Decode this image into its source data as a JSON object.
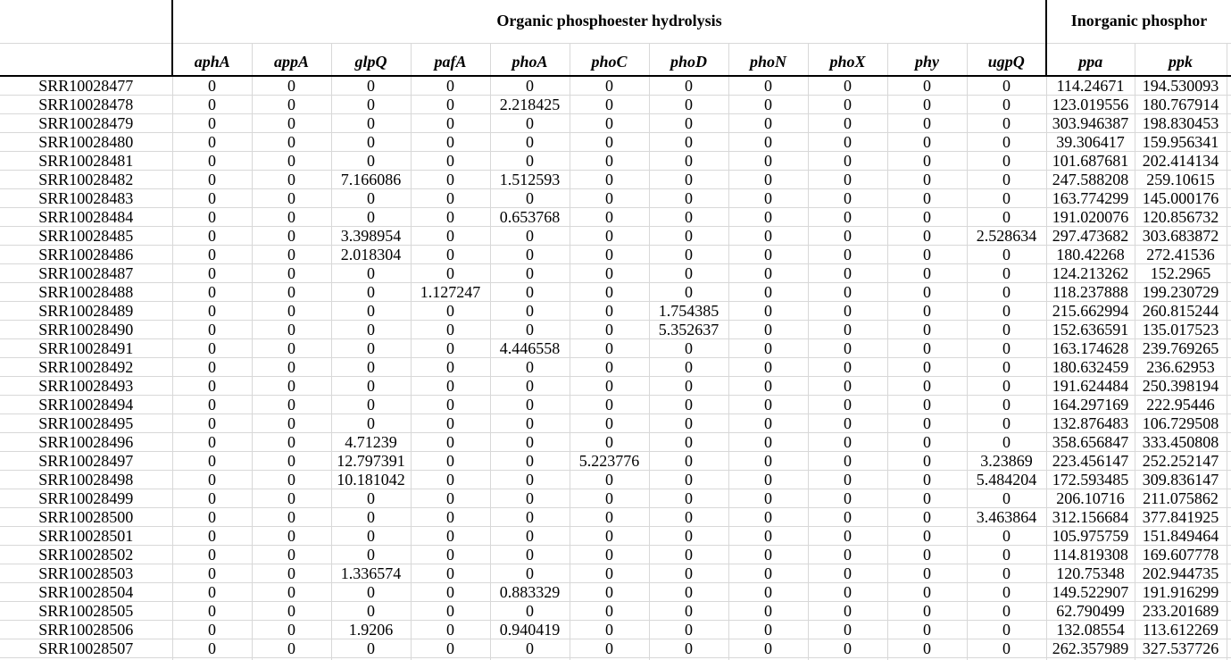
{
  "sheet": {
    "group_headers": {
      "organic": "Organic phosphoester hydrolysis",
      "inorganic_visible": "Inorganic phosphor"
    },
    "column_groups": [
      {
        "label": "Organic phosphoester hydrolysis",
        "columns": [
          "aphA",
          "appA",
          "glpQ",
          "pafA",
          "phoA",
          "phoC",
          "phoD",
          "phoN",
          "phoX",
          "phy",
          "ugpQ"
        ]
      },
      {
        "label": "Inorganic phosphor",
        "label_truncated_at_right_edge": true,
        "columns": [
          "ppa",
          "ppk"
        ]
      }
    ],
    "rows": [
      {
        "id": "SRR10028477",
        "values": [
          "0",
          "0",
          "0",
          "0",
          "0",
          "0",
          "0",
          "0",
          "0",
          "0",
          "0",
          "114.24671",
          "194.530093"
        ]
      },
      {
        "id": "SRR10028478",
        "values": [
          "0",
          "0",
          "0",
          "0",
          "2.218425",
          "0",
          "0",
          "0",
          "0",
          "0",
          "0",
          "123.019556",
          "180.767914"
        ]
      },
      {
        "id": "SRR10028479",
        "values": [
          "0",
          "0",
          "0",
          "0",
          "0",
          "0",
          "0",
          "0",
          "0",
          "0",
          "0",
          "303.946387",
          "198.830453"
        ]
      },
      {
        "id": "SRR10028480",
        "values": [
          "0",
          "0",
          "0",
          "0",
          "0",
          "0",
          "0",
          "0",
          "0",
          "0",
          "0",
          "39.306417",
          "159.956341"
        ]
      },
      {
        "id": "SRR10028481",
        "values": [
          "0",
          "0",
          "0",
          "0",
          "0",
          "0",
          "0",
          "0",
          "0",
          "0",
          "0",
          "101.687681",
          "202.414134"
        ]
      },
      {
        "id": "SRR10028482",
        "values": [
          "0",
          "0",
          "7.166086",
          "0",
          "1.512593",
          "0",
          "0",
          "0",
          "0",
          "0",
          "0",
          "247.588208",
          "259.10615"
        ]
      },
      {
        "id": "SRR10028483",
        "values": [
          "0",
          "0",
          "0",
          "0",
          "0",
          "0",
          "0",
          "0",
          "0",
          "0",
          "0",
          "163.774299",
          "145.000176"
        ]
      },
      {
        "id": "SRR10028484",
        "values": [
          "0",
          "0",
          "0",
          "0",
          "0.653768",
          "0",
          "0",
          "0",
          "0",
          "0",
          "0",
          "191.020076",
          "120.856732"
        ]
      },
      {
        "id": "SRR10028485",
        "values": [
          "0",
          "0",
          "3.398954",
          "0",
          "0",
          "0",
          "0",
          "0",
          "0",
          "0",
          "2.528634",
          "297.473682",
          "303.683872"
        ]
      },
      {
        "id": "SRR10028486",
        "values": [
          "0",
          "0",
          "2.018304",
          "0",
          "0",
          "0",
          "0",
          "0",
          "0",
          "0",
          "0",
          "180.42268",
          "272.41536"
        ]
      },
      {
        "id": "SRR10028487",
        "values": [
          "0",
          "0",
          "0",
          "0",
          "0",
          "0",
          "0",
          "0",
          "0",
          "0",
          "0",
          "124.213262",
          "152.2965"
        ]
      },
      {
        "id": "SRR10028488",
        "values": [
          "0",
          "0",
          "0",
          "1.127247",
          "0",
          "0",
          "0",
          "0",
          "0",
          "0",
          "0",
          "118.237888",
          "199.230729"
        ]
      },
      {
        "id": "SRR10028489",
        "values": [
          "0",
          "0",
          "0",
          "0",
          "0",
          "0",
          "1.754385",
          "0",
          "0",
          "0",
          "0",
          "215.662994",
          "260.815244"
        ]
      },
      {
        "id": "SRR10028490",
        "values": [
          "0",
          "0",
          "0",
          "0",
          "0",
          "0",
          "5.352637",
          "0",
          "0",
          "0",
          "0",
          "152.636591",
          "135.017523"
        ]
      },
      {
        "id": "SRR10028491",
        "values": [
          "0",
          "0",
          "0",
          "0",
          "4.446558",
          "0",
          "0",
          "0",
          "0",
          "0",
          "0",
          "163.174628",
          "239.769265"
        ]
      },
      {
        "id": "SRR10028492",
        "values": [
          "0",
          "0",
          "0",
          "0",
          "0",
          "0",
          "0",
          "0",
          "0",
          "0",
          "0",
          "180.632459",
          "236.62953"
        ]
      },
      {
        "id": "SRR10028493",
        "values": [
          "0",
          "0",
          "0",
          "0",
          "0",
          "0",
          "0",
          "0",
          "0",
          "0",
          "0",
          "191.624484",
          "250.398194"
        ]
      },
      {
        "id": "SRR10028494",
        "values": [
          "0",
          "0",
          "0",
          "0",
          "0",
          "0",
          "0",
          "0",
          "0",
          "0",
          "0",
          "164.297169",
          "222.95446"
        ]
      },
      {
        "id": "SRR10028495",
        "values": [
          "0",
          "0",
          "0",
          "0",
          "0",
          "0",
          "0",
          "0",
          "0",
          "0",
          "0",
          "132.876483",
          "106.729508"
        ]
      },
      {
        "id": "SRR10028496",
        "values": [
          "0",
          "0",
          "4.71239",
          "0",
          "0",
          "0",
          "0",
          "0",
          "0",
          "0",
          "0",
          "358.656847",
          "333.450808"
        ]
      },
      {
        "id": "SRR10028497",
        "values": [
          "0",
          "0",
          "12.797391",
          "0",
          "0",
          "5.223776",
          "0",
          "0",
          "0",
          "0",
          "3.23869",
          "223.456147",
          "252.252147"
        ]
      },
      {
        "id": "SRR10028498",
        "values": [
          "0",
          "0",
          "10.181042",
          "0",
          "0",
          "0",
          "0",
          "0",
          "0",
          "0",
          "5.484204",
          "172.593485",
          "309.836147"
        ]
      },
      {
        "id": "SRR10028499",
        "values": [
          "0",
          "0",
          "0",
          "0",
          "0",
          "0",
          "0",
          "0",
          "0",
          "0",
          "0",
          "206.10716",
          "211.075862"
        ]
      },
      {
        "id": "SRR10028500",
        "values": [
          "0",
          "0",
          "0",
          "0",
          "0",
          "0",
          "0",
          "0",
          "0",
          "0",
          "3.463864",
          "312.156684",
          "377.841925"
        ]
      },
      {
        "id": "SRR10028501",
        "values": [
          "0",
          "0",
          "0",
          "0",
          "0",
          "0",
          "0",
          "0",
          "0",
          "0",
          "0",
          "105.975759",
          "151.849464"
        ]
      },
      {
        "id": "SRR10028502",
        "values": [
          "0",
          "0",
          "0",
          "0",
          "0",
          "0",
          "0",
          "0",
          "0",
          "0",
          "0",
          "114.819308",
          "169.607778"
        ]
      },
      {
        "id": "SRR10028503",
        "values": [
          "0",
          "0",
          "1.336574",
          "0",
          "0",
          "0",
          "0",
          "0",
          "0",
          "0",
          "0",
          "120.75348",
          "202.944735"
        ]
      },
      {
        "id": "SRR10028504",
        "values": [
          "0",
          "0",
          "0",
          "0",
          "0.883329",
          "0",
          "0",
          "0",
          "0",
          "0",
          "0",
          "149.522907",
          "191.916299"
        ]
      },
      {
        "id": "SRR10028505",
        "values": [
          "0",
          "0",
          "0",
          "0",
          "0",
          "0",
          "0",
          "0",
          "0",
          "0",
          "0",
          "62.790499",
          "233.201689"
        ]
      },
      {
        "id": "SRR10028506",
        "values": [
          "0",
          "0",
          "1.9206",
          "0",
          "0.940419",
          "0",
          "0",
          "0",
          "0",
          "0",
          "0",
          "132.08554",
          "113.612269"
        ]
      },
      {
        "id": "SRR10028507",
        "values": [
          "0",
          "0",
          "0",
          "0",
          "0",
          "0",
          "0",
          "0",
          "0",
          "0",
          "0",
          "262.357989",
          "327.537726"
        ]
      }
    ]
  }
}
